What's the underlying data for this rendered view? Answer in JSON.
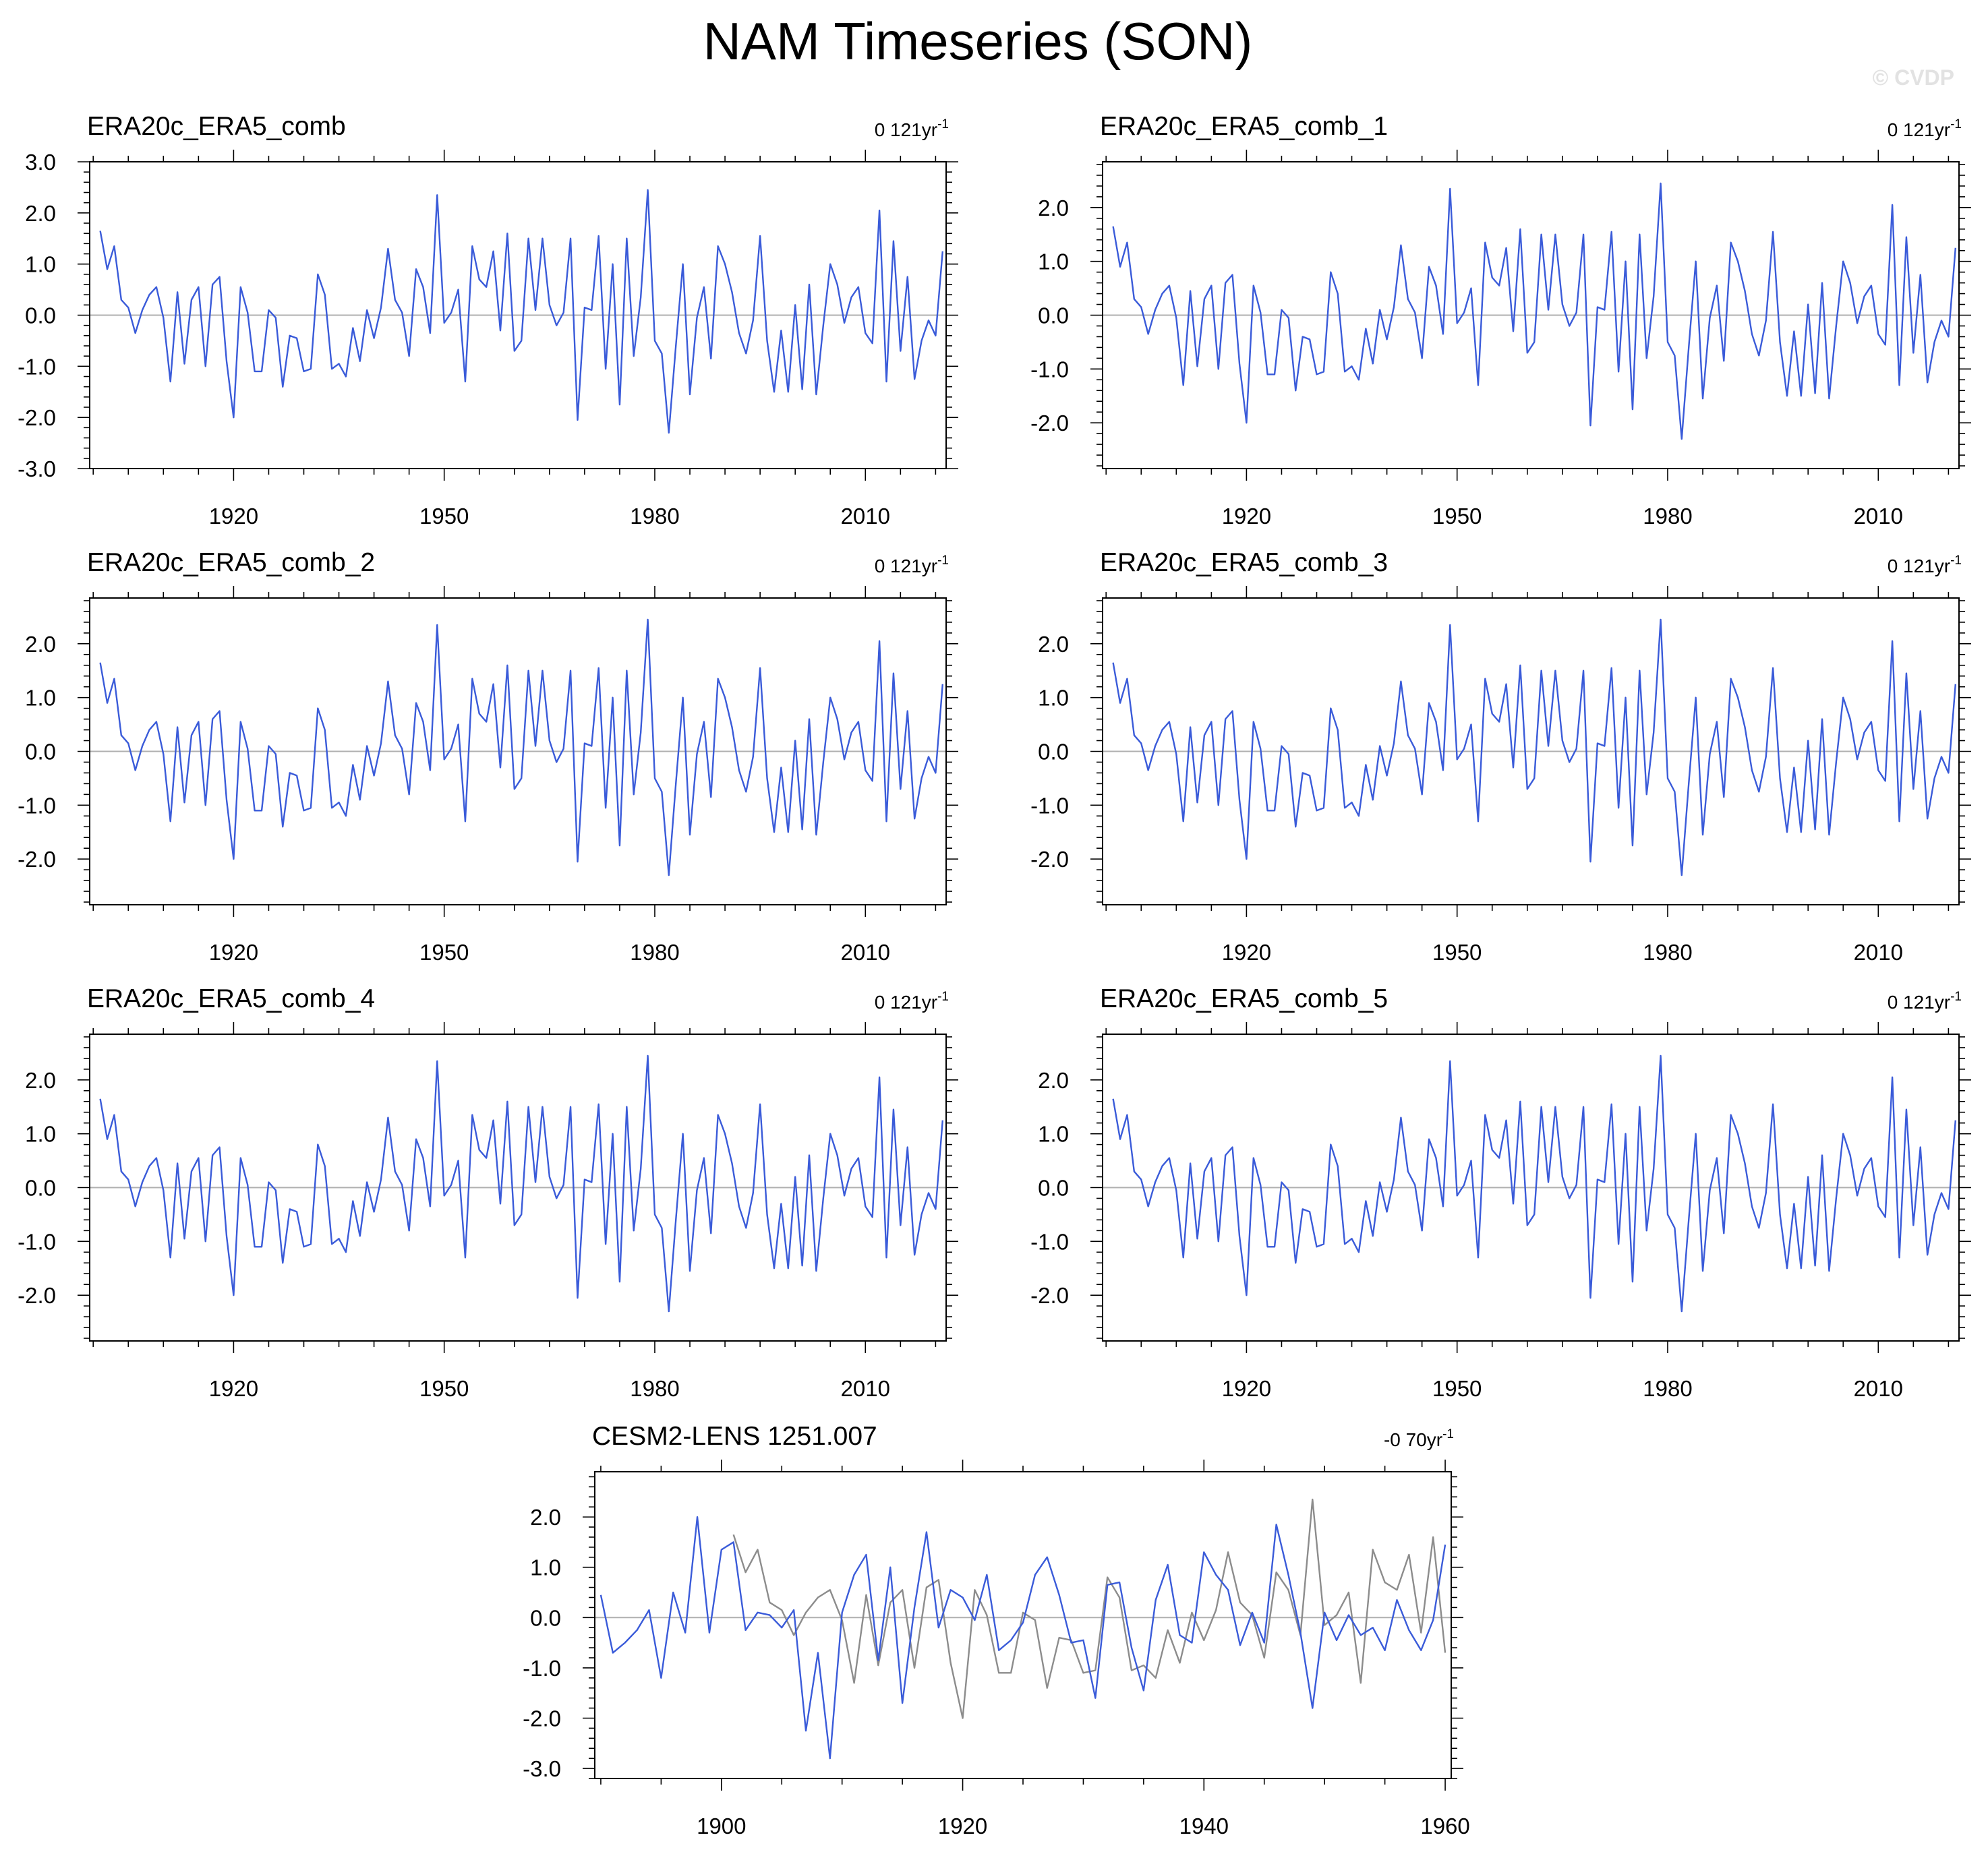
{
  "chart_data": {
    "type": "line",
    "title": "NAM Timeseries (SON)",
    "watermark": "© CVDP",
    "zero_line_color": "#b0b0b0",
    "obs_color": "#3a5bd9",
    "overlay_color": "#8c8c8c",
    "obs_years": [
      1901,
      1902,
      1903,
      1904,
      1905,
      1906,
      1907,
      1908,
      1909,
      1910,
      1911,
      1912,
      1913,
      1914,
      1915,
      1916,
      1917,
      1918,
      1919,
      1920,
      1921,
      1922,
      1923,
      1924,
      1925,
      1926,
      1927,
      1928,
      1929,
      1930,
      1931,
      1932,
      1933,
      1934,
      1935,
      1936,
      1937,
      1938,
      1939,
      1940,
      1941,
      1942,
      1943,
      1944,
      1945,
      1946,
      1947,
      1948,
      1949,
      1950,
      1951,
      1952,
      1953,
      1954,
      1955,
      1956,
      1957,
      1958,
      1959,
      1960,
      1961,
      1962,
      1963,
      1964,
      1965,
      1966,
      1967,
      1968,
      1969,
      1970,
      1971,
      1972,
      1973,
      1974,
      1975,
      1976,
      1977,
      1978,
      1979,
      1980,
      1981,
      1982,
      1983,
      1984,
      1985,
      1986,
      1987,
      1988,
      1989,
      1990,
      1991,
      1992,
      1993,
      1994,
      1995,
      1996,
      1997,
      1998,
      1999,
      2000,
      2001,
      2002,
      2003,
      2004,
      2005,
      2006,
      2007,
      2008,
      2009,
      2010,
      2011,
      2012,
      2013,
      2014,
      2015,
      2016,
      2017,
      2018,
      2019,
      2020,
      2021
    ],
    "obs_values": [
      1.65,
      0.9,
      1.35,
      0.3,
      0.15,
      -0.35,
      0.1,
      0.4,
      0.55,
      -0.05,
      -1.3,
      0.45,
      -0.95,
      0.3,
      0.55,
      -1.0,
      0.6,
      0.75,
      -0.9,
      -2.0,
      0.55,
      0.05,
      -1.1,
      -1.1,
      0.1,
      -0.05,
      -1.4,
      -0.4,
      -0.45,
      -1.1,
      -1.05,
      0.8,
      0.4,
      -1.05,
      -0.95,
      -1.2,
      -0.25,
      -0.9,
      0.1,
      -0.45,
      0.15,
      1.3,
      0.3,
      0.05,
      -0.8,
      0.9,
      0.55,
      -0.35,
      2.35,
      -0.15,
      0.05,
      0.5,
      -1.3,
      1.35,
      0.7,
      0.55,
      1.25,
      -0.3,
      1.6,
      -0.7,
      -0.5,
      1.5,
      0.1,
      1.5,
      0.2,
      -0.2,
      0.05,
      1.5,
      -2.05,
      0.15,
      0.1,
      1.55,
      -1.05,
      1.0,
      -1.75,
      1.5,
      -0.8,
      0.35,
      2.45,
      -0.5,
      -0.75,
      -2.3,
      -0.6,
      1.0,
      -1.55,
      -0.05,
      0.55,
      -0.85,
      1.35,
      1.0,
      0.45,
      -0.35,
      -0.75,
      -0.1,
      1.55,
      -0.5,
      -1.5,
      -0.3,
      -1.5,
      0.2,
      -1.45,
      0.6,
      -1.55,
      -0.2,
      1.0,
      0.6,
      -0.15,
      0.35,
      0.55,
      -0.35,
      -0.55,
      2.05,
      -1.3,
      1.45,
      -0.7,
      0.75,
      -1.25,
      -0.5,
      -0.1,
      -0.4,
      1.25
    ],
    "model_years": [
      1890,
      1891,
      1892,
      1893,
      1894,
      1895,
      1896,
      1897,
      1898,
      1899,
      1900,
      1901,
      1902,
      1903,
      1904,
      1905,
      1906,
      1907,
      1908,
      1909,
      1910,
      1911,
      1912,
      1913,
      1914,
      1915,
      1916,
      1917,
      1918,
      1919,
      1920,
      1921,
      1922,
      1923,
      1924,
      1925,
      1926,
      1927,
      1928,
      1929,
      1930,
      1931,
      1932,
      1933,
      1934,
      1935,
      1936,
      1937,
      1938,
      1939,
      1940,
      1941,
      1942,
      1943,
      1944,
      1945,
      1946,
      1947,
      1948,
      1949,
      1950,
      1951,
      1952,
      1953,
      1954,
      1955,
      1956,
      1957,
      1958,
      1959,
      1960
    ],
    "model_values": [
      0.45,
      -0.7,
      -0.5,
      -0.25,
      0.15,
      -1.2,
      0.5,
      -0.3,
      2.0,
      -0.3,
      1.35,
      1.5,
      -0.25,
      0.1,
      0.05,
      -0.2,
      0.15,
      -2.25,
      -0.7,
      -2.8,
      0.1,
      0.85,
      1.25,
      -0.85,
      1.0,
      -1.7,
      0.2,
      1.7,
      -0.2,
      0.55,
      0.4,
      -0.05,
      0.85,
      -0.65,
      -0.45,
      -0.1,
      0.85,
      1.2,
      0.45,
      -0.5,
      -0.45,
      -1.6,
      0.65,
      0.7,
      -0.6,
      -1.45,
      0.35,
      1.05,
      -0.35,
      -0.5,
      1.3,
      0.85,
      0.55,
      -0.55,
      0.1,
      -0.5,
      1.85,
      0.85,
      -0.3,
      -1.8,
      0.1,
      -0.45,
      0.05,
      -0.35,
      -0.2,
      -0.65,
      0.35,
      -0.25,
      -0.65,
      -0.05,
      1.45
    ],
    "panels": [
      {
        "title": "ERA20c_ERA5_comb",
        "trend": "0 121yr",
        "trend_sup": "-1",
        "series": "obs",
        "xlim": [
          1899.5,
          2021.5
        ],
        "ylim": [
          -3.0,
          3.0
        ],
        "yticks": [
          -3.0,
          -2.0,
          -1.0,
          0.0,
          1.0,
          2.0,
          3.0
        ],
        "ytick_labels": [
          "-3.0",
          "-2.0",
          "-1.0",
          "0.0",
          "1.0",
          "2.0",
          "3.0"
        ],
        "xticks": [
          1920,
          1950,
          1980,
          2010
        ],
        "xtick_labels": [
          "1920",
          "1950",
          "1980",
          "2010"
        ]
      },
      {
        "title": "ERA20c_ERA5_comb_1",
        "trend": "0 121yr",
        "trend_sup": "-1",
        "series": "obs",
        "xlim": [
          1899.5,
          2021.5
        ],
        "ylim": [
          -2.85,
          2.85
        ],
        "yticks": [
          -2.0,
          -1.0,
          0.0,
          1.0,
          2.0
        ],
        "ytick_labels": [
          "-2.0",
          "-1.0",
          "0.0",
          "1.0",
          "2.0"
        ],
        "xticks": [
          1920,
          1950,
          1980,
          2010
        ],
        "xtick_labels": [
          "1920",
          "1950",
          "1980",
          "2010"
        ]
      },
      {
        "title": "ERA20c_ERA5_comb_2",
        "trend": "0 121yr",
        "trend_sup": "-1",
        "series": "obs",
        "xlim": [
          1899.5,
          2021.5
        ],
        "ylim": [
          -2.85,
          2.85
        ],
        "yticks": [
          -2.0,
          -1.0,
          0.0,
          1.0,
          2.0
        ],
        "ytick_labels": [
          "-2.0",
          "-1.0",
          "0.0",
          "1.0",
          "2.0"
        ],
        "xticks": [
          1920,
          1950,
          1980,
          2010
        ],
        "xtick_labels": [
          "1920",
          "1950",
          "1980",
          "2010"
        ]
      },
      {
        "title": "ERA20c_ERA5_comb_3",
        "trend": "0 121yr",
        "trend_sup": "-1",
        "series": "obs",
        "xlim": [
          1899.5,
          2021.5
        ],
        "ylim": [
          -2.85,
          2.85
        ],
        "yticks": [
          -2.0,
          -1.0,
          0.0,
          1.0,
          2.0
        ],
        "ytick_labels": [
          "-2.0",
          "-1.0",
          "0.0",
          "1.0",
          "2.0"
        ],
        "xticks": [
          1920,
          1950,
          1980,
          2010
        ],
        "xtick_labels": [
          "1920",
          "1950",
          "1980",
          "2010"
        ]
      },
      {
        "title": "ERA20c_ERA5_comb_4",
        "trend": "0 121yr",
        "trend_sup": "-1",
        "series": "obs",
        "xlim": [
          1899.5,
          2021.5
        ],
        "ylim": [
          -2.85,
          2.85
        ],
        "yticks": [
          -2.0,
          -1.0,
          0.0,
          1.0,
          2.0
        ],
        "ytick_labels": [
          "-2.0",
          "-1.0",
          "0.0",
          "1.0",
          "2.0"
        ],
        "xticks": [
          1920,
          1950,
          1980,
          2010
        ],
        "xtick_labels": [
          "1920",
          "1950",
          "1980",
          "2010"
        ]
      },
      {
        "title": "ERA20c_ERA5_comb_5",
        "trend": "0 121yr",
        "trend_sup": "-1",
        "series": "obs",
        "xlim": [
          1899.5,
          2021.5
        ],
        "ylim": [
          -2.85,
          2.85
        ],
        "yticks": [
          -2.0,
          -1.0,
          0.0,
          1.0,
          2.0
        ],
        "ytick_labels": [
          "-2.0",
          "-1.0",
          "0.0",
          "1.0",
          "2.0"
        ],
        "xticks": [
          1920,
          1950,
          1980,
          2010
        ],
        "xtick_labels": [
          "1920",
          "1950",
          "1980",
          "2010"
        ]
      },
      {
        "title": "CESM2-LENS 1251.007",
        "trend": "-0 70yr",
        "trend_sup": "-1",
        "series": "model",
        "overlay": "obs",
        "xlim": [
          1889.5,
          1960.5
        ],
        "ylim": [
          -3.2,
          2.9
        ],
        "yticks": [
          -3.0,
          -2.0,
          -1.0,
          0.0,
          1.0,
          2.0
        ],
        "ytick_labels": [
          "-3.0",
          "-2.0",
          "-1.0",
          "0.0",
          "1.0",
          "2.0"
        ],
        "xticks": [
          1900,
          1920,
          1940,
          1960
        ],
        "xtick_labels": [
          "1900",
          "1920",
          "1940",
          "1960"
        ]
      }
    ]
  }
}
